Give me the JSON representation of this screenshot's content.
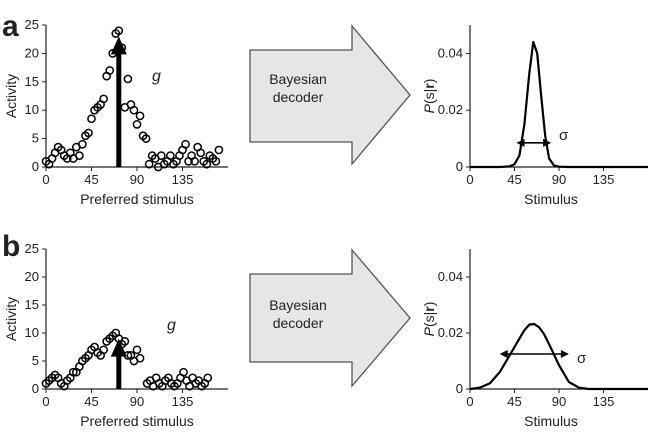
{
  "panels": [
    {
      "letter": "a",
      "gain_label": "g",
      "sigma_label": "σ"
    },
    {
      "letter": "b",
      "gain_label": "g",
      "sigma_label": "σ"
    }
  ],
  "decoder": {
    "line1": "Bayesian",
    "line2": "decoder"
  },
  "chart_data": [
    {
      "type": "scatter",
      "panel": "a",
      "xlabel": "Preferred stimulus",
      "ylabel": "Activity",
      "xlim": [
        0,
        180
      ],
      "ylim": [
        0,
        25
      ],
      "xticks": [
        0,
        45,
        90,
        135
      ],
      "yticks": [
        0,
        5,
        10,
        15,
        20,
        25
      ],
      "arrow_x": 72,
      "arrow_y": 23,
      "x": [
        0,
        3,
        6,
        9,
        12,
        15,
        18,
        21,
        24,
        27,
        30,
        33,
        36,
        39,
        42,
        45,
        48,
        51,
        54,
        57,
        60,
        63,
        66,
        69,
        72,
        75,
        78,
        81,
        84,
        87,
        90,
        93,
        96,
        99,
        102,
        105,
        108,
        111,
        114,
        117,
        120,
        123,
        126,
        129,
        132,
        135,
        138,
        141,
        144,
        147,
        150,
        153,
        156,
        159,
        162,
        165,
        168,
        171
      ],
      "y": [
        1,
        0.5,
        1.5,
        2.5,
        3.5,
        3,
        2,
        1.5,
        2.5,
        1.5,
        3.5,
        2,
        4,
        5.5,
        6,
        8.5,
        10,
        10.5,
        11,
        12,
        16,
        17,
        20,
        23.5,
        24,
        21,
        10.5,
        15.5,
        11,
        10,
        7.5,
        9,
        5.5,
        5,
        0.5,
        2,
        1.5,
        0,
        2,
        0.5,
        1,
        2,
        0.5,
        1,
        2,
        3,
        4,
        1,
        2,
        1,
        3.5,
        2.5,
        1,
        0.5,
        2,
        1.5,
        1,
        3
      ]
    },
    {
      "type": "line",
      "panel": "a",
      "xlabel": "Stimulus",
      "ylabel": "P(s|r)",
      "xlim": [
        0,
        180
      ],
      "ylim": [
        0,
        0.05
      ],
      "xticks": [
        0,
        45,
        90,
        135
      ],
      "yticks": [
        0,
        0.02,
        0.04
      ],
      "ytick_labels": [
        "0",
        "0.02",
        "0.04"
      ],
      "x": [
        0,
        30,
        40,
        45,
        50,
        55,
        60,
        64,
        68,
        72,
        76,
        80,
        85,
        90,
        100,
        120,
        180
      ],
      "y": [
        0,
        0,
        0.0002,
        0.001,
        0.004,
        0.015,
        0.033,
        0.044,
        0.04,
        0.025,
        0.011,
        0.003,
        0.0005,
        0.0001,
        0,
        0,
        0
      ],
      "sigma_arrow": [
        47,
        82
      ],
      "sigma_y": 0.0085
    },
    {
      "type": "scatter",
      "panel": "b",
      "xlabel": "Preferred stimulus",
      "ylabel": "Activity",
      "xlim": [
        0,
        180
      ],
      "ylim": [
        0,
        25
      ],
      "xticks": [
        0,
        45,
        90,
        135
      ],
      "yticks": [
        0,
        5,
        10,
        15,
        20,
        25
      ],
      "arrow_x": 72,
      "arrow_y": 9,
      "x": [
        0,
        3,
        6,
        9,
        12,
        15,
        18,
        21,
        24,
        27,
        30,
        33,
        36,
        39,
        42,
        45,
        48,
        51,
        54,
        57,
        60,
        63,
        66,
        69,
        72,
        75,
        78,
        81,
        84,
        87,
        90,
        93,
        100,
        103,
        106,
        109,
        112,
        115,
        118,
        121,
        124,
        127,
        130,
        133,
        136,
        139,
        142,
        145,
        148,
        151,
        154,
        157,
        160
      ],
      "y": [
        1,
        1.5,
        2,
        2.5,
        2,
        1,
        0.5,
        1.5,
        2,
        3,
        3,
        4,
        5,
        5.5,
        6,
        7,
        7.5,
        6.5,
        6,
        7,
        8.5,
        9,
        9.5,
        10,
        9,
        8,
        8.5,
        6,
        6,
        5,
        7,
        5.5,
        1,
        1.5,
        0.5,
        2,
        1,
        0.5,
        1.5,
        2,
        1,
        0.5,
        1,
        2,
        3,
        1.5,
        0.5,
        2,
        1,
        1.5,
        0.5,
        1,
        2
      ]
    },
    {
      "type": "line",
      "panel": "b",
      "xlabel": "Stimulus",
      "ylabel": "P(s|r)",
      "xlim": [
        0,
        180
      ],
      "ylim": [
        0,
        0.05
      ],
      "xticks": [
        0,
        45,
        90,
        135
      ],
      "yticks": [
        0,
        0.02,
        0.04
      ],
      "ytick_labels": [
        "0",
        "0.02",
        "0.04"
      ],
      "x": [
        0,
        10,
        20,
        30,
        40,
        50,
        55,
        60,
        65,
        70,
        75,
        80,
        90,
        100,
        110,
        120,
        180
      ],
      "y": [
        0,
        0.0005,
        0.002,
        0.006,
        0.012,
        0.018,
        0.021,
        0.023,
        0.0232,
        0.022,
        0.0195,
        0.016,
        0.0085,
        0.0025,
        0.0005,
        0,
        0
      ],
      "sigma_arrow": [
        30,
        100
      ],
      "sigma_y": 0.0125
    }
  ]
}
